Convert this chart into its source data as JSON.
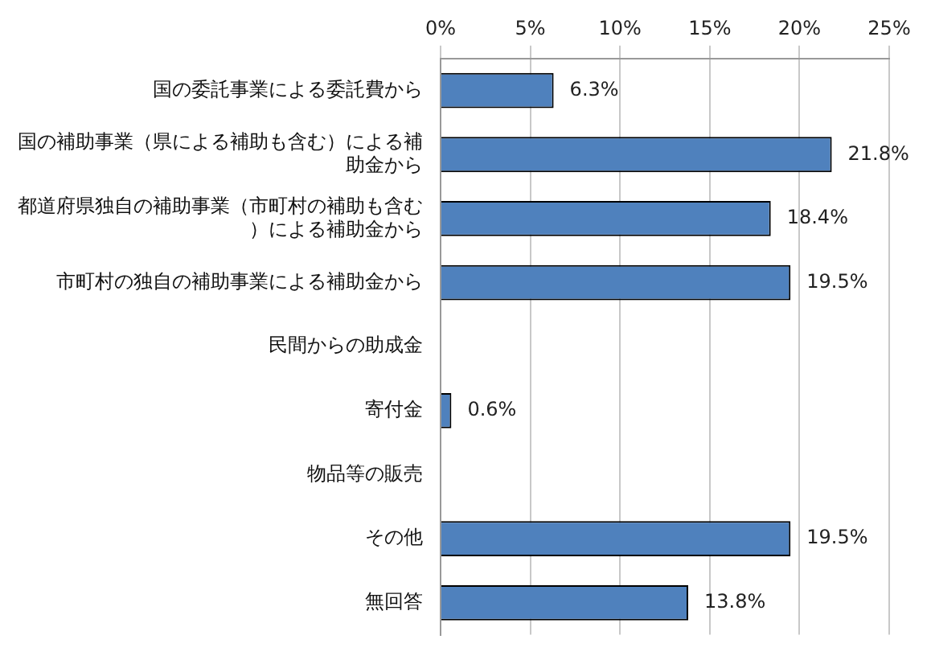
{
  "chart_data": {
    "type": "bar",
    "orientation": "horizontal",
    "categories": [
      "国の委託事業による委託費から",
      "国の補助事業（県による補助も含む）による補助金から",
      "都道府県独自の補助事業（市町村の補助も含む）による補助金から",
      "市町村の独自の補助事業による補助金から",
      "民間からの助成金",
      "寄付金",
      "物品等の販売",
      "その他",
      "無回答"
    ],
    "values": [
      6.3,
      21.8,
      18.4,
      19.5,
      null,
      0.6,
      null,
      19.5,
      13.8
    ],
    "value_labels": [
      "6.3%",
      "21.8%",
      "18.4%",
      "19.5%",
      null,
      "0.6%",
      null,
      "19.5%",
      "13.8%"
    ],
    "color": "#4f81bd",
    "xlim": [
      0,
      25
    ],
    "xticks": [
      {
        "value": 0,
        "label": "0%"
      },
      {
        "value": 5,
        "label": "5%"
      },
      {
        "value": 10,
        "label": "10%"
      },
      {
        "value": 15,
        "label": "15%"
      },
      {
        "value": 20,
        "label": "20%"
      },
      {
        "value": 25,
        "label": "25%"
      }
    ],
    "grid": "x",
    "legend": false
  }
}
